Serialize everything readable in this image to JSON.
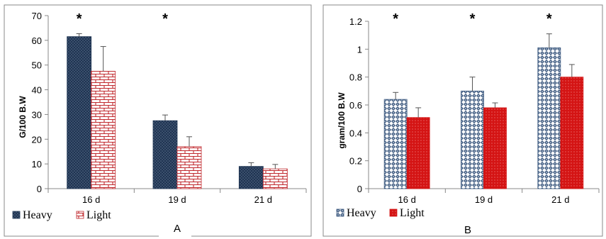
{
  "chart_data": [
    {
      "type": "bar",
      "panel_label": "A",
      "ylabel": "G/100 B.W",
      "categories": [
        "16 d",
        "19 d",
        "21 d"
      ],
      "ylim": [
        0,
        70
      ],
      "yticks": [
        0,
        10,
        20,
        30,
        40,
        50,
        60,
        70
      ],
      "yticklabels": [
        "0",
        "10",
        "20",
        "30",
        "40",
        "50",
        "60",
        "70"
      ],
      "grid": false,
      "legend_position": "bottom-left",
      "series": [
        {
          "name": "Heavy",
          "values": [
            61.5,
            27.5,
            9.0
          ],
          "errors": [
            1.2,
            2.3,
            1.5
          ],
          "color": "#1f3452",
          "pattern": "dots"
        },
        {
          "name": "Light",
          "values": [
            47.5,
            17.0,
            8.0
          ],
          "errors": [
            10.0,
            4.0,
            1.8
          ],
          "color": "#c0282d",
          "pattern": "brick"
        }
      ],
      "significance": [
        "*",
        "*",
        ""
      ]
    },
    {
      "type": "bar",
      "panel_label": "B",
      "ylabel": "gram/100 B.W",
      "categories": [
        "16 d",
        "19 d",
        "21 d"
      ],
      "ylim": [
        0,
        1.2
      ],
      "yticks": [
        0,
        0.2,
        0.4,
        0.6,
        0.8,
        1.0,
        1.2
      ],
      "yticklabels": [
        "0",
        "0.2",
        "0.4",
        "0.6",
        "0.8",
        "1",
        "1.2"
      ],
      "grid": false,
      "legend_position": "bottom-left",
      "series": [
        {
          "name": "Heavy",
          "values": [
            0.64,
            0.7,
            1.01
          ],
          "errors": [
            0.05,
            0.1,
            0.1
          ],
          "color": "#3d5a80",
          "pattern": "diamond"
        },
        {
          "name": "Light",
          "values": [
            0.51,
            0.58,
            0.8
          ],
          "errors": [
            0.07,
            0.035,
            0.09
          ],
          "color": "#d41414",
          "pattern": "reddots"
        }
      ],
      "significance": [
        "*",
        "*",
        "*"
      ]
    }
  ]
}
